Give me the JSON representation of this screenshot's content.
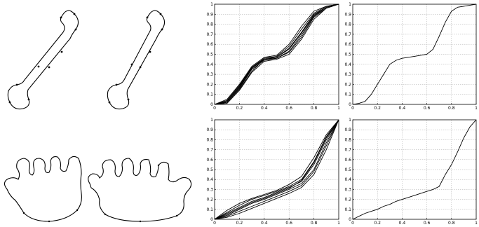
{
  "chart_data": [
    {
      "type": "line",
      "title": "",
      "xlabel": "",
      "ylabel": "",
      "xlim": [
        0,
        1
      ],
      "ylim": [
        0,
        1
      ],
      "grid": true,
      "xticks": [
        "0",
        "0.2",
        "0.4",
        "0.6",
        "0.8",
        "1"
      ],
      "yticks": [
        "0",
        "0.1",
        "0.2",
        "0.3",
        "0.4",
        "0.5",
        "0.6",
        "0.7",
        "0.8",
        "0.9",
        "1"
      ],
      "series": [
        {
          "x": [
            0,
            0.1,
            0.2,
            0.3,
            0.4,
            0.5,
            0.6,
            0.7,
            0.8,
            0.9,
            1
          ],
          "y": [
            0,
            0.03,
            0.18,
            0.36,
            0.45,
            0.47,
            0.56,
            0.72,
            0.9,
            0.97,
            1
          ]
        },
        {
          "x": [
            0,
            0.1,
            0.2,
            0.3,
            0.4,
            0.5,
            0.6,
            0.7,
            0.8,
            0.9,
            1
          ],
          "y": [
            0,
            0.01,
            0.14,
            0.32,
            0.43,
            0.45,
            0.5,
            0.65,
            0.85,
            0.96,
            1
          ]
        },
        {
          "x": [
            0,
            0.1,
            0.2,
            0.3,
            0.4,
            0.5,
            0.6,
            0.7,
            0.8,
            0.9,
            1
          ],
          "y": [
            0,
            0.05,
            0.2,
            0.38,
            0.47,
            0.49,
            0.6,
            0.78,
            0.93,
            0.98,
            1
          ]
        },
        {
          "x": [
            0,
            0.1,
            0.2,
            0.3,
            0.4,
            0.5,
            0.6,
            0.7,
            0.8,
            0.9,
            1
          ],
          "y": [
            0,
            0.02,
            0.16,
            0.35,
            0.44,
            0.46,
            0.53,
            0.69,
            0.88,
            0.97,
            1
          ]
        },
        {
          "x": [
            0,
            0.1,
            0.2,
            0.3,
            0.4,
            0.5,
            0.6,
            0.7,
            0.8,
            0.9,
            1
          ],
          "y": [
            0,
            0.04,
            0.19,
            0.37,
            0.46,
            0.48,
            0.58,
            0.75,
            0.91,
            0.98,
            1
          ]
        },
        {
          "x": [
            0,
            0.1,
            0.2,
            0.3,
            0.4,
            0.5,
            0.6,
            0.7,
            0.8,
            0.9,
            1
          ],
          "y": [
            0,
            0.02,
            0.15,
            0.33,
            0.45,
            0.46,
            0.52,
            0.67,
            0.87,
            0.96,
            1
          ]
        },
        {
          "x": [
            0,
            0.1,
            0.2,
            0.3,
            0.4,
            0.5,
            0.6,
            0.7,
            0.8,
            0.9,
            1
          ],
          "y": [
            0,
            0.03,
            0.17,
            0.36,
            0.46,
            0.47,
            0.55,
            0.71,
            0.89,
            0.97,
            1
          ]
        }
      ]
    },
    {
      "type": "line",
      "title": "",
      "xlabel": "",
      "ylabel": "",
      "xlim": [
        0,
        1
      ],
      "ylim": [
        0,
        1
      ],
      "grid": true,
      "xticks": [
        "0",
        "0.2",
        "0.4",
        "0.6",
        "0.8",
        "1"
      ],
      "yticks": [
        "0",
        "0.1",
        "0.2",
        "0.3",
        "0.4",
        "0.5",
        "0.6",
        "0.7",
        "0.8",
        "0.9",
        "1"
      ],
      "series": [
        {
          "x": [
            0,
            0.05,
            0.1,
            0.15,
            0.2,
            0.25,
            0.3,
            0.35,
            0.4,
            0.45,
            0.5,
            0.55,
            0.6,
            0.65,
            0.7,
            0.75,
            0.8,
            0.85,
            0.9,
            0.95,
            1
          ],
          "y": [
            0,
            0.01,
            0.03,
            0.1,
            0.2,
            0.3,
            0.4,
            0.44,
            0.46,
            0.47,
            0.48,
            0.49,
            0.5,
            0.55,
            0.68,
            0.82,
            0.93,
            0.97,
            0.98,
            0.99,
            1
          ]
        }
      ]
    },
    {
      "type": "line",
      "title": "",
      "xlabel": "",
      "ylabel": "",
      "xlim": [
        0,
        1
      ],
      "ylim": [
        0,
        1
      ],
      "grid": true,
      "xticks": [
        "0",
        "0.2",
        "0.4",
        "0.6",
        "0.8",
        "1"
      ],
      "yticks": [
        "0",
        "0.1",
        "0.2",
        "0.3",
        "0.4",
        "0.5",
        "0.6",
        "0.7",
        "0.8",
        "0.9",
        "1"
      ],
      "series": [
        {
          "x": [
            0,
            0.1,
            0.2,
            0.3,
            0.4,
            0.5,
            0.6,
            0.7,
            0.8,
            0.9,
            1
          ],
          "y": [
            0,
            0.06,
            0.12,
            0.18,
            0.22,
            0.27,
            0.32,
            0.38,
            0.55,
            0.8,
            1
          ]
        },
        {
          "x": [
            0,
            0.1,
            0.2,
            0.3,
            0.4,
            0.5,
            0.6,
            0.7,
            0.8,
            0.9,
            1
          ],
          "y": [
            0,
            0.03,
            0.08,
            0.13,
            0.18,
            0.23,
            0.28,
            0.34,
            0.48,
            0.74,
            1
          ]
        },
        {
          "x": [
            0,
            0.1,
            0.2,
            0.3,
            0.4,
            0.5,
            0.6,
            0.7,
            0.8,
            0.9,
            1
          ],
          "y": [
            0,
            0.09,
            0.16,
            0.21,
            0.25,
            0.29,
            0.35,
            0.43,
            0.62,
            0.85,
            1
          ]
        },
        {
          "x": [
            0,
            0.1,
            0.2,
            0.3,
            0.4,
            0.5,
            0.6,
            0.7,
            0.8,
            0.9,
            1
          ],
          "y": [
            0,
            0.04,
            0.1,
            0.16,
            0.2,
            0.25,
            0.3,
            0.36,
            0.5,
            0.77,
            1
          ]
        },
        {
          "x": [
            0,
            0.1,
            0.2,
            0.3,
            0.4,
            0.5,
            0.6,
            0.7,
            0.8,
            0.9,
            1
          ],
          "y": [
            0,
            0.07,
            0.14,
            0.2,
            0.24,
            0.28,
            0.33,
            0.4,
            0.58,
            0.83,
            1
          ]
        },
        {
          "x": [
            0,
            0.1,
            0.2,
            0.3,
            0.4,
            0.5,
            0.6,
            0.7,
            0.8,
            0.9,
            1
          ],
          "y": [
            0,
            0.05,
            0.11,
            0.17,
            0.21,
            0.26,
            0.31,
            0.39,
            0.57,
            0.82,
            1
          ]
        },
        {
          "x": [
            0,
            0.1,
            0.2,
            0.3,
            0.4,
            0.5,
            0.6,
            0.7,
            0.8,
            0.9,
            1
          ],
          "y": [
            0,
            0.02,
            0.06,
            0.11,
            0.16,
            0.21,
            0.26,
            0.32,
            0.45,
            0.7,
            1
          ]
        }
      ]
    },
    {
      "type": "line",
      "title": "",
      "xlabel": "",
      "ylabel": "",
      "xlim": [
        0,
        1
      ],
      "ylim": [
        0,
        1
      ],
      "grid": true,
      "xticks": [
        "0",
        "0.2",
        "0.4",
        "0.6",
        "0.8",
        "1"
      ],
      "yticks": [
        "0",
        "0.1",
        "0.2",
        "0.3",
        "0.4",
        "0.5",
        "0.6",
        "0.7",
        "0.8",
        "0.9",
        "1"
      ],
      "series": [
        {
          "x": [
            0,
            0.05,
            0.1,
            0.15,
            0.2,
            0.25,
            0.3,
            0.35,
            0.4,
            0.45,
            0.5,
            0.55,
            0.6,
            0.65,
            0.7,
            0.75,
            0.8,
            0.85,
            0.9,
            0.95,
            1
          ],
          "y": [
            0,
            0.03,
            0.06,
            0.08,
            0.1,
            0.13,
            0.15,
            0.18,
            0.2,
            0.22,
            0.24,
            0.26,
            0.28,
            0.3,
            0.33,
            0.45,
            0.55,
            0.68,
            0.82,
            0.93,
            1
          ]
        }
      ]
    }
  ],
  "shapes": [
    {
      "icon": "bone-outline"
    },
    {
      "icon": "bone-outline"
    },
    {
      "icon": "crown-outline"
    },
    {
      "icon": "crown-outline"
    }
  ]
}
